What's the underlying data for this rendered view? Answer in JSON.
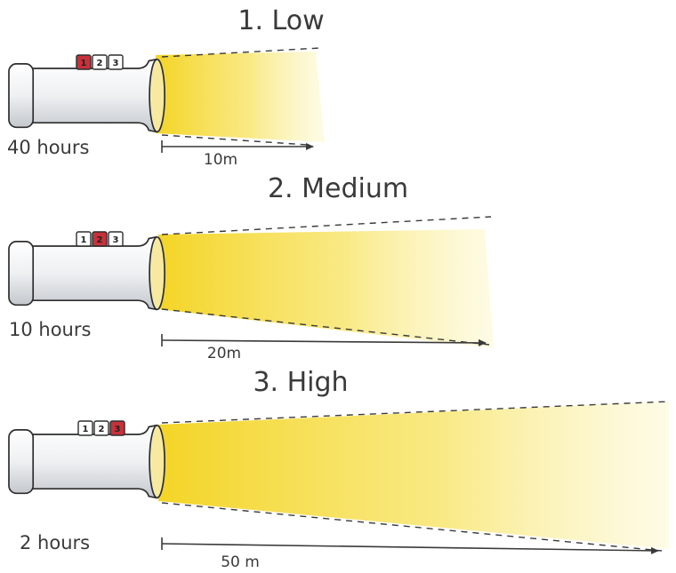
{
  "colors": {
    "beam": "#f6df3a",
    "beam_edge": "#d8b400",
    "body": "#f4f4f4",
    "body_shade": "#cfd2d6",
    "outline": "#2e2e2e",
    "active_button": "#c8313a",
    "text": "#3a3a3a"
  },
  "modes": [
    {
      "title": "1. Low",
      "runtime": "40 hours",
      "distance": "10m",
      "distance_m": 10,
      "active_button": 1,
      "buttons": [
        "1",
        "2",
        "3"
      ]
    },
    {
      "title": "2. Medium",
      "runtime": "10 hours",
      "distance": "20m",
      "distance_m": 20,
      "active_button": 2,
      "buttons": [
        "1",
        "2",
        "3"
      ]
    },
    {
      "title": "3. High",
      "runtime": "2 hours",
      "distance": "50 m",
      "distance_m": 50,
      "active_button": 3,
      "buttons": [
        "1",
        "2",
        "3"
      ]
    }
  ]
}
